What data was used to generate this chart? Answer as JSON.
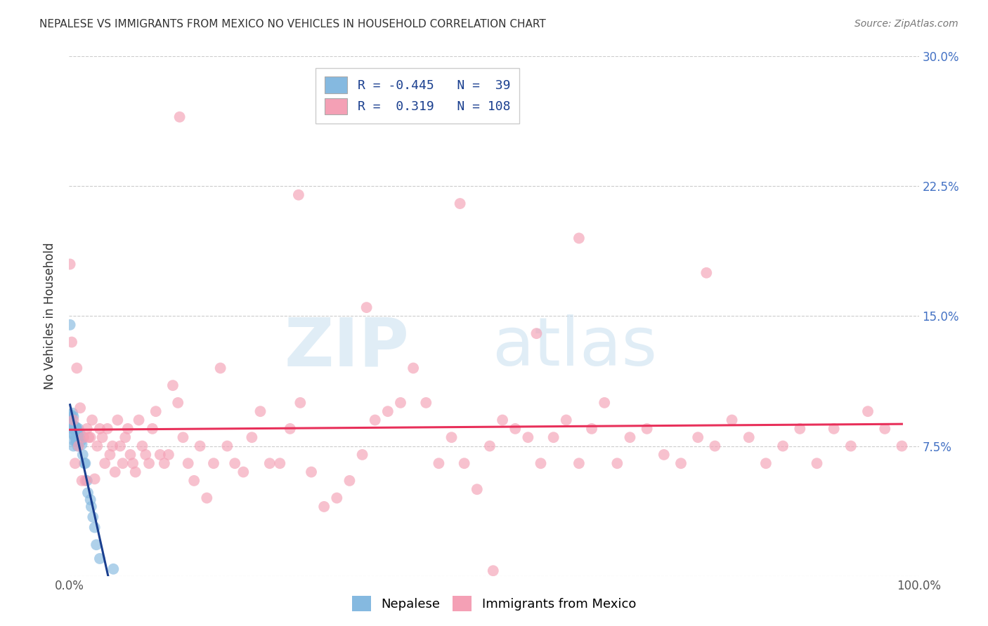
{
  "title": "NEPALESE VS IMMIGRANTS FROM MEXICO NO VEHICLES IN HOUSEHOLD CORRELATION CHART",
  "source": "Source: ZipAtlas.com",
  "ylabel": "No Vehicles in Household",
  "watermark_zip": "ZIP",
  "watermark_atlas": "atlas",
  "xlim": [
    0,
    1.0
  ],
  "ylim": [
    0,
    0.3
  ],
  "xticks": [
    0.0,
    0.25,
    0.5,
    0.75,
    1.0
  ],
  "xticklabels_show": [
    "0.0%",
    "100.0%"
  ],
  "yticks": [
    0.0,
    0.075,
    0.15,
    0.225,
    0.3
  ],
  "yticklabels_right": [
    "",
    "7.5%",
    "15.0%",
    "22.5%",
    "30.0%"
  ],
  "legend_labels": [
    "Nepalese",
    "Immigrants from Mexico"
  ],
  "R_nepalese": -0.445,
  "N_nepalese": 39,
  "R_mexico": 0.319,
  "N_mexico": 108,
  "blue_color": "#85b9e0",
  "pink_color": "#f4a0b5",
  "blue_line_color": "#1a3f8f",
  "pink_line_color": "#e8305a",
  "background_color": "#ffffff",
  "grid_color": "#cccccc",
  "title_color": "#333333",
  "right_tick_color": "#4472c4",
  "legend_text_color": "#1a3f8f",
  "nepalese_x": [
    0.001,
    0.002,
    0.003,
    0.003,
    0.003,
    0.004,
    0.004,
    0.005,
    0.005,
    0.005,
    0.005,
    0.006,
    0.006,
    0.007,
    0.007,
    0.008,
    0.008,
    0.009,
    0.009,
    0.01,
    0.01,
    0.01,
    0.011,
    0.012,
    0.013,
    0.014,
    0.015,
    0.016,
    0.018,
    0.019,
    0.021,
    0.022,
    0.025,
    0.026,
    0.028,
    0.03,
    0.032,
    0.036,
    0.052
  ],
  "nepalese_y": [
    0.145,
    0.093,
    0.092,
    0.088,
    0.082,
    0.094,
    0.085,
    0.092,
    0.087,
    0.082,
    0.075,
    0.085,
    0.078,
    0.086,
    0.08,
    0.086,
    0.078,
    0.085,
    0.078,
    0.084,
    0.082,
    0.075,
    0.085,
    0.08,
    0.082,
    0.078,
    0.076,
    0.07,
    0.065,
    0.065,
    0.055,
    0.048,
    0.044,
    0.04,
    0.034,
    0.028,
    0.018,
    0.01,
    0.004
  ],
  "mexico_x": [
    0.001,
    0.003,
    0.005,
    0.007,
    0.009,
    0.011,
    0.013,
    0.015,
    0.017,
    0.019,
    0.021,
    0.023,
    0.025,
    0.027,
    0.03,
    0.033,
    0.036,
    0.039,
    0.042,
    0.045,
    0.048,
    0.051,
    0.054,
    0.057,
    0.06,
    0.063,
    0.066,
    0.069,
    0.072,
    0.075,
    0.078,
    0.082,
    0.086,
    0.09,
    0.094,
    0.098,
    0.102,
    0.107,
    0.112,
    0.117,
    0.122,
    0.128,
    0.134,
    0.14,
    0.147,
    0.154,
    0.162,
    0.17,
    0.178,
    0.186,
    0.195,
    0.205,
    0.215,
    0.225,
    0.236,
    0.248,
    0.26,
    0.272,
    0.285,
    0.3,
    0.315,
    0.33,
    0.345,
    0.36,
    0.375,
    0.39,
    0.405,
    0.42,
    0.435,
    0.45,
    0.465,
    0.48,
    0.495,
    0.51,
    0.525,
    0.54,
    0.555,
    0.57,
    0.585,
    0.6,
    0.615,
    0.63,
    0.645,
    0.66,
    0.68,
    0.7,
    0.72,
    0.74,
    0.76,
    0.78,
    0.8,
    0.82,
    0.84,
    0.86,
    0.88,
    0.9,
    0.92,
    0.94,
    0.96,
    0.98,
    0.499,
    0.13,
    0.27,
    0.46,
    0.6,
    0.75,
    0.35,
    0.55
  ],
  "mexico_y": [
    0.18,
    0.135,
    0.09,
    0.065,
    0.12,
    0.075,
    0.097,
    0.055,
    0.08,
    0.055,
    0.085,
    0.08,
    0.08,
    0.09,
    0.056,
    0.075,
    0.085,
    0.08,
    0.065,
    0.085,
    0.07,
    0.075,
    0.06,
    0.09,
    0.075,
    0.065,
    0.08,
    0.085,
    0.07,
    0.065,
    0.06,
    0.09,
    0.075,
    0.07,
    0.065,
    0.085,
    0.095,
    0.07,
    0.065,
    0.07,
    0.11,
    0.1,
    0.08,
    0.065,
    0.055,
    0.075,
    0.045,
    0.065,
    0.12,
    0.075,
    0.065,
    0.06,
    0.08,
    0.095,
    0.065,
    0.065,
    0.085,
    0.1,
    0.06,
    0.04,
    0.045,
    0.055,
    0.07,
    0.09,
    0.095,
    0.1,
    0.12,
    0.1,
    0.065,
    0.08,
    0.065,
    0.05,
    0.075,
    0.09,
    0.085,
    0.08,
    0.065,
    0.08,
    0.09,
    0.065,
    0.085,
    0.1,
    0.065,
    0.08,
    0.085,
    0.07,
    0.065,
    0.08,
    0.075,
    0.09,
    0.08,
    0.065,
    0.075,
    0.085,
    0.065,
    0.085,
    0.075,
    0.095,
    0.085,
    0.075,
    0.003,
    0.265,
    0.22,
    0.215,
    0.195,
    0.175,
    0.155,
    0.14
  ]
}
